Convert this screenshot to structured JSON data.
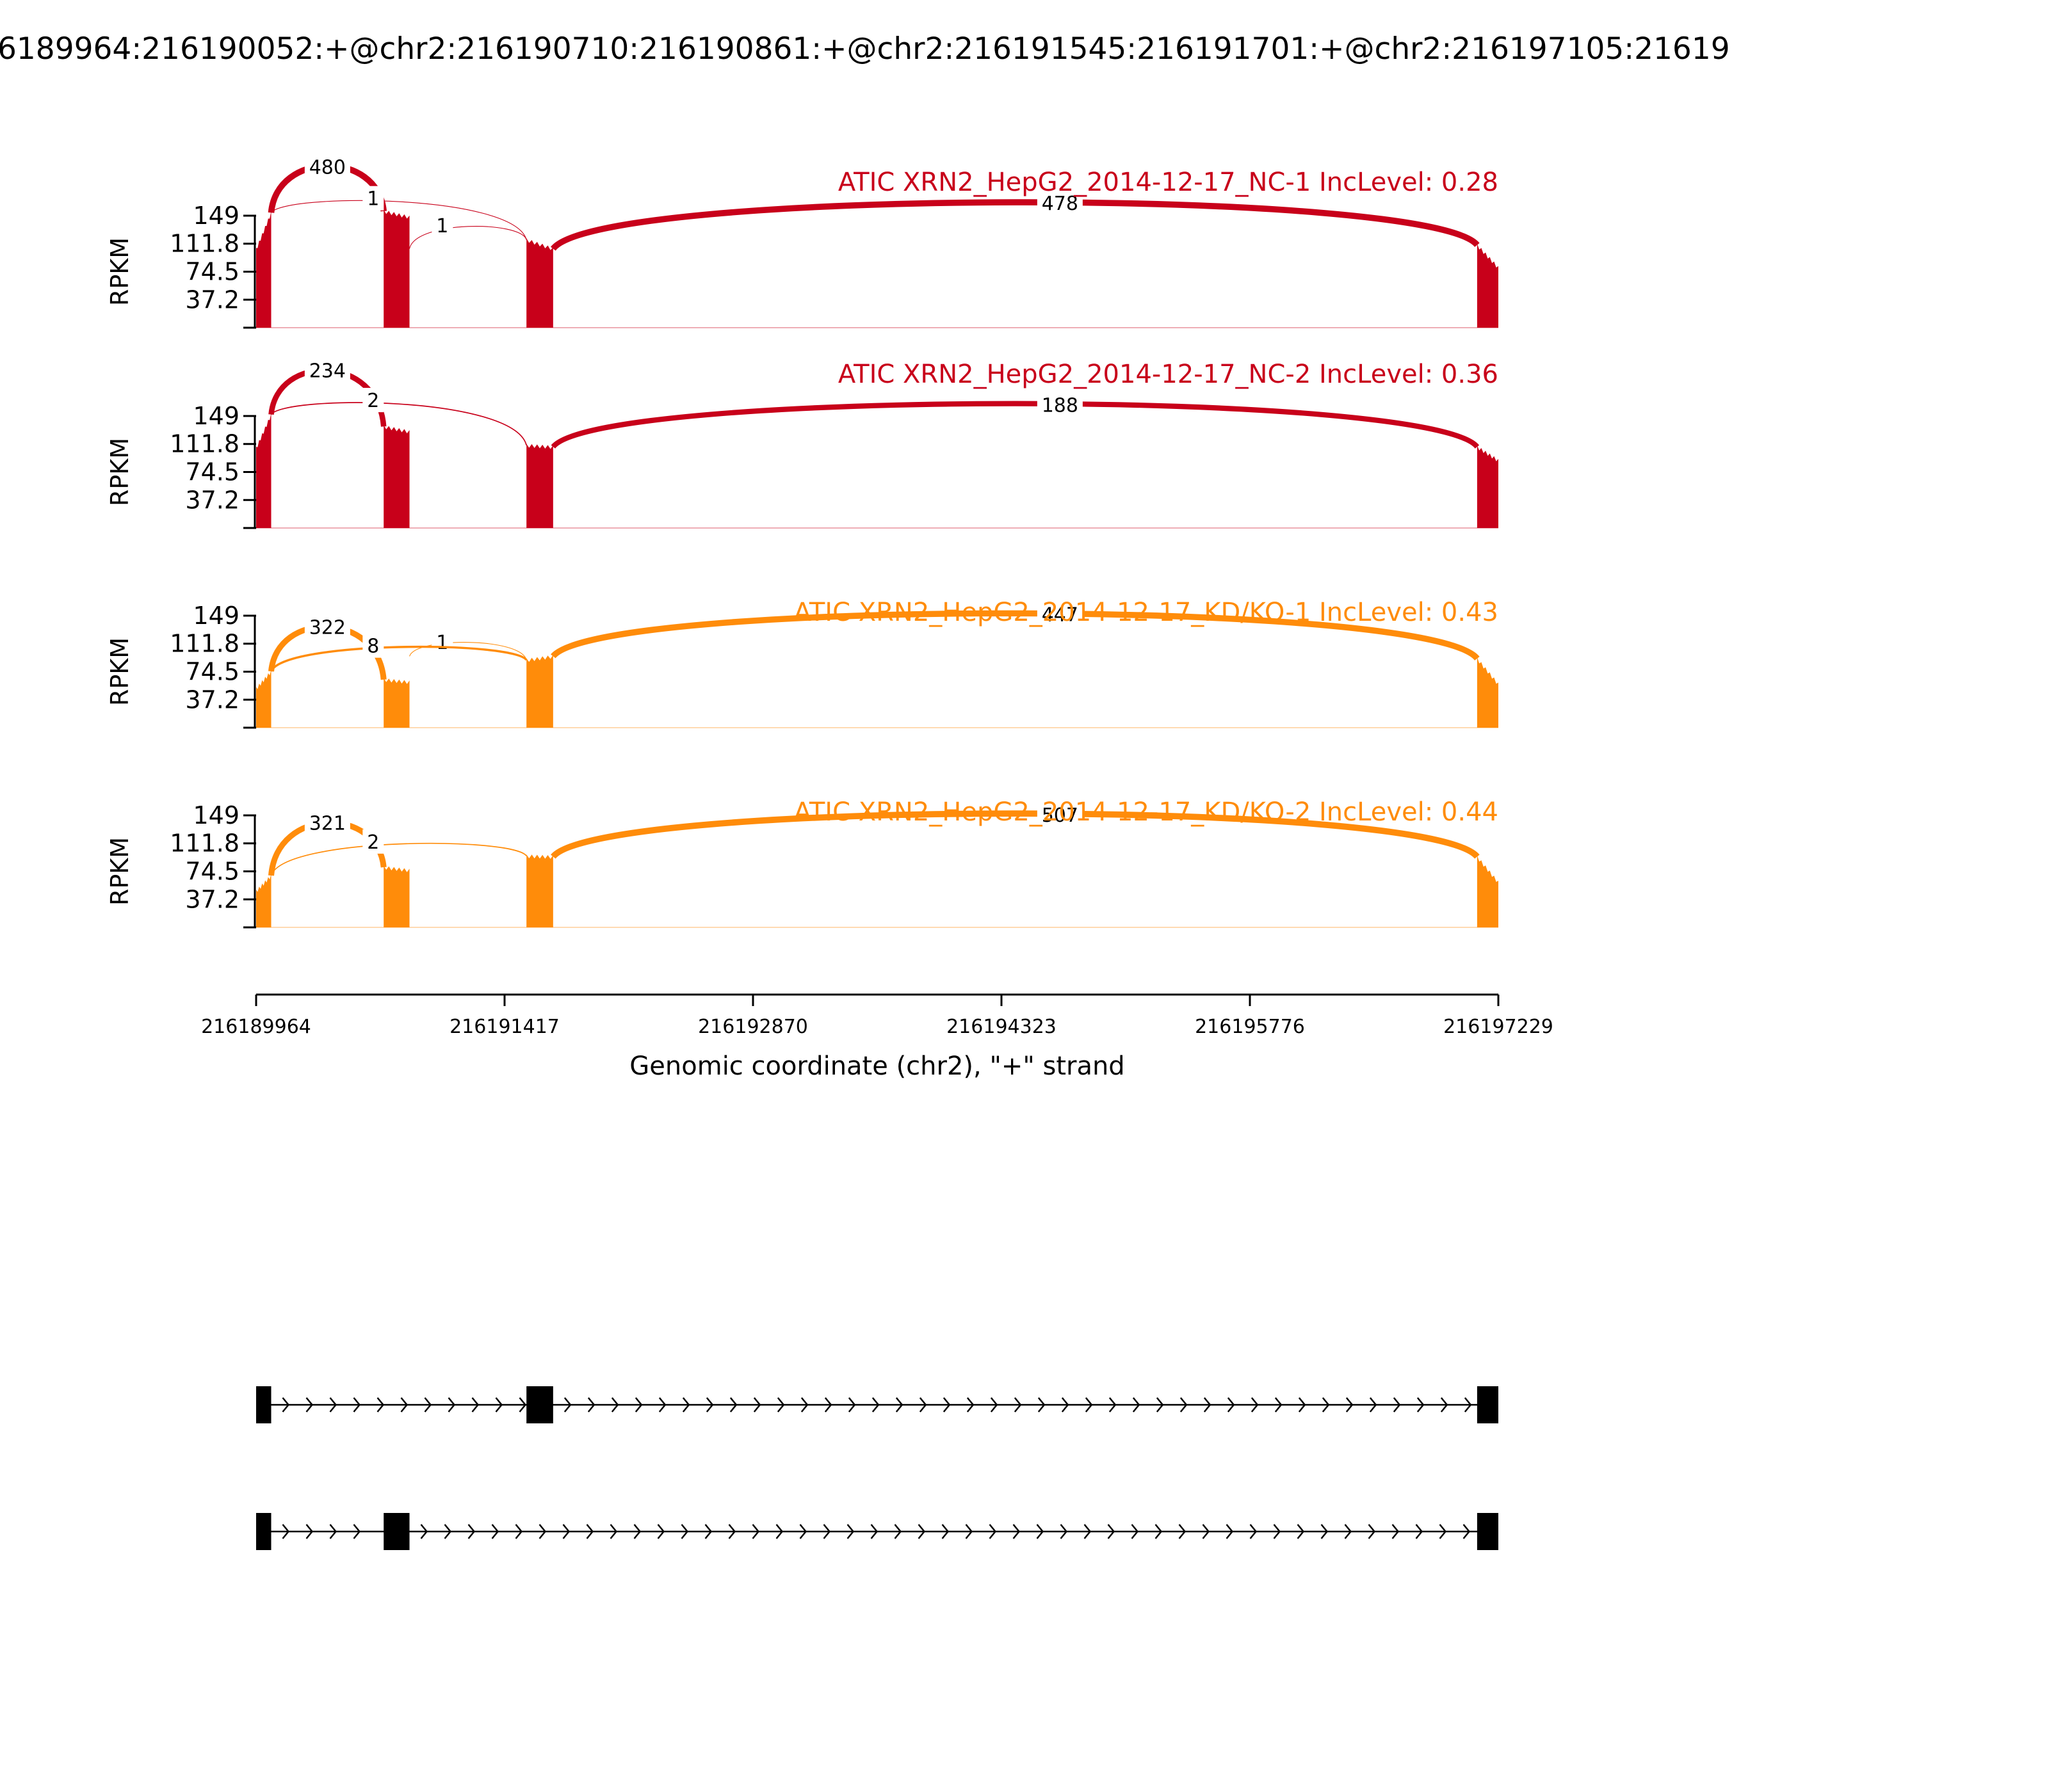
{
  "title": "6189964:216190052:+@chr2:216190710:216190861:+@chr2:216191545:216191701:+@chr2:216197105:21619",
  "chart_data": {
    "type": "sashimi",
    "x_range": [
      216189964,
      216197229
    ],
    "x_ticks": [
      216189964,
      216191417,
      216192870,
      216194323,
      216195776,
      216197229
    ],
    "x_tick_labels": [
      "216189964",
      "216191417",
      "216192870",
      "216194323",
      "216195776",
      "216197229"
    ],
    "xlabel": "Genomic coordinate (chr2), \"+\" strand",
    "ylabel": "RPKM",
    "y_ticks": [
      37.2,
      74.5,
      111.8,
      149
    ],
    "y_tick_labels": [
      "37.2",
      "74.5",
      "111.8",
      "149"
    ],
    "y_max": 149,
    "exons": [
      {
        "start": 216189964,
        "end": 216190052
      },
      {
        "start": 216190710,
        "end": 216190861
      },
      {
        "start": 216191545,
        "end": 216191701
      },
      {
        "start": 216197105,
        "end": 216197229
      }
    ],
    "panels": [
      {
        "label": "ATIC XRN2_HepG2_2014-12-17_NC-1 IncLevel: 0.28",
        "color": "#c8001a",
        "coverage": [
          104,
          153,
          155,
          117,
          105,
          110,
          80
        ],
        "junctions": [
          {
            "start": 216190052,
            "end": 216190710,
            "count": 480,
            "label": "480",
            "side": "above"
          },
          {
            "start": 216190861,
            "end": 216191545,
            "count": 1,
            "label": "1",
            "side": "above"
          },
          {
            "start": 216190052,
            "end": 216191545,
            "count": 1,
            "label": "1",
            "side": "above"
          },
          {
            "start": 216191701,
            "end": 216197105,
            "count": 478,
            "label": "478",
            "side": "above"
          }
        ]
      },
      {
        "label": "ATIC XRN2_HepG2_2014-12-17_NC-2 IncLevel: 0.36",
        "color": "#c8001a",
        "coverage": [
          106,
          151,
          135,
          110,
          108,
          108,
          90
        ],
        "junctions": [
          {
            "start": 216190052,
            "end": 216190710,
            "count": 234,
            "label": "234",
            "side": "above"
          },
          {
            "start": 216190052,
            "end": 216191545,
            "count": 2,
            "label": "2",
            "side": "above"
          },
          {
            "start": 216191701,
            "end": 216197105,
            "count": 188,
            "label": "188",
            "side": "above"
          }
        ]
      },
      {
        "label": "ATIC XRN2_HepG2_2014-12-17_KD/KO-1 IncLevel: 0.43",
        "color": "#ff8c0a",
        "coverage": [
          52,
          75,
          64,
          90,
          95,
          92,
          58
        ],
        "junctions": [
          {
            "start": 216190052,
            "end": 216190710,
            "count": 322,
            "label": "322",
            "side": "above"
          },
          {
            "start": 216190861,
            "end": 216191545,
            "count": 1,
            "label": "1",
            "side": "above"
          },
          {
            "start": 216190052,
            "end": 216191545,
            "count": 8,
            "label": "8",
            "side": "above"
          },
          {
            "start": 216191701,
            "end": 216197105,
            "count": 447,
            "label": "447",
            "side": "above"
          }
        ]
      },
      {
        "label": "ATIC XRN2_HepG2_2014-12-17_KD/KO-2 IncLevel: 0.44",
        "color": "#ff8c0a",
        "coverage": [
          48,
          69,
          80,
          95,
          94,
          94,
          60
        ],
        "junctions": [
          {
            "start": 216190052,
            "end": 216190710,
            "count": 321,
            "label": "321",
            "side": "above"
          },
          {
            "start": 216190052,
            "end": 216191545,
            "count": 2,
            "label": "2",
            "side": "above"
          },
          {
            "start": 216191701,
            "end": 216197105,
            "count": 507,
            "label": "507",
            "side": "above"
          }
        ]
      }
    ],
    "isoforms": [
      {
        "exons": [
          [
            216189964,
            216190052
          ],
          [
            216191545,
            216191701
          ],
          [
            216197105,
            216197229
          ]
        ]
      },
      {
        "exons": [
          [
            216189964,
            216190052
          ],
          [
            216190710,
            216190861
          ],
          [
            216197105,
            216197229
          ]
        ]
      }
    ]
  }
}
